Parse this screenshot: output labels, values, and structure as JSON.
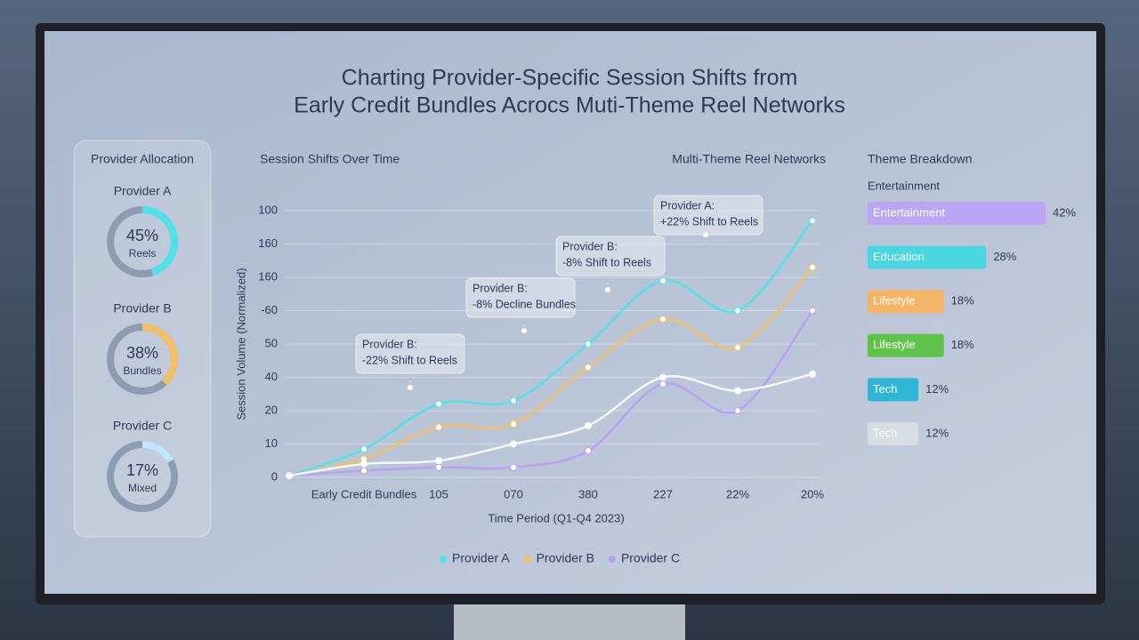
{
  "title": [
    "Charting Provider-Specific Session Shifts from",
    "Early Credit Bundles Acrocs Muti-Theme Reel Networks"
  ],
  "allocation": {
    "heading": "Provider Allocation",
    "items": [
      {
        "name": "Provider A",
        "value": 45,
        "value_label": "45%",
        "caption": "Reels",
        "color": "#4fe3e8"
      },
      {
        "name": "Provider B",
        "value": 38,
        "value_label": "38%",
        "caption": "Bundles",
        "color": "#f5c063"
      },
      {
        "name": "Provider C",
        "value": 17,
        "value_label": "17%",
        "caption": "Mixed",
        "color": "#bfe6fb"
      }
    ]
  },
  "chart_data": {
    "type": "line",
    "title": "Session Shifts Over Time",
    "subtitle": "Multi-Theme Reel Networks",
    "x_label": "Time Period (Q1-Q4 2023)",
    "y_label": "Session Volume (Normalized)",
    "categories": [
      null,
      "Early Credit Bundles",
      "105",
      "070",
      "380",
      "227",
      "22%",
      "20%"
    ],
    "ylim": [
      0,
      80
    ],
    "yticks": [
      0,
      10,
      20,
      {
        "value": 30,
        "label": "40"
      },
      {
        "value": 40,
        "label": "50"
      },
      {
        "value": 50,
        "label": "-60"
      },
      {
        "value": 60,
        "label": "160"
      },
      {
        "value": 70,
        "label": "160"
      },
      {
        "value": 80,
        "label": "100"
      }
    ],
    "grid": true,
    "series": [
      {
        "name": "Provider A",
        "color": "#4fe3e8",
        "values": [
          0.5,
          8.5,
          22,
          23,
          40,
          59,
          50,
          77
        ]
      },
      {
        "name": "Provider B",
        "color": "#f5c063",
        "values": [
          0.5,
          5.5,
          15,
          16,
          33,
          47.5,
          39,
          63
        ]
      },
      {
        "name": "Provider C",
        "color": "#b9a0f0",
        "values": [
          0.5,
          2,
          3,
          3,
          8,
          28,
          20,
          50
        ]
      },
      {
        "color": "#f4f6fb",
        "values": [
          0.5,
          4,
          5,
          10,
          15.5,
          30,
          26,
          31
        ]
      }
    ],
    "annotations": [
      {
        "title": "Provider B:",
        "text": "-22% Shift to Reels"
      },
      {
        "title": "Provider B:",
        "text": "-8% Decline Bundles"
      },
      {
        "title": "Provider B:",
        "text": "-8% Shift to Reels"
      },
      {
        "title": "Provider A:",
        "text": "+22% Shift to Reels"
      }
    ]
  },
  "themes": {
    "heading": "Theme Breakdown",
    "subheading": "Entertainment",
    "bars": [
      {
        "name": "Entertainment",
        "value": 42,
        "value_label": "42%",
        "color": "#b9a6f5"
      },
      {
        "name": "Education",
        "value": 28,
        "value_label": "28%",
        "color": "#48d6e0"
      },
      {
        "name": "Lifestyle",
        "value": 18,
        "value_label": "18%",
        "color": "#f5b566"
      },
      {
        "name": "Lifestyle",
        "value": 18,
        "value_label": "18%",
        "color": "#5fc34a"
      },
      {
        "name": "Tech",
        "value": 12,
        "value_label": "12%",
        "color": "#2fb5d8"
      },
      {
        "name": "Tech",
        "value": 12,
        "value_label": "12%",
        "color": "#d8dce4"
      }
    ]
  }
}
